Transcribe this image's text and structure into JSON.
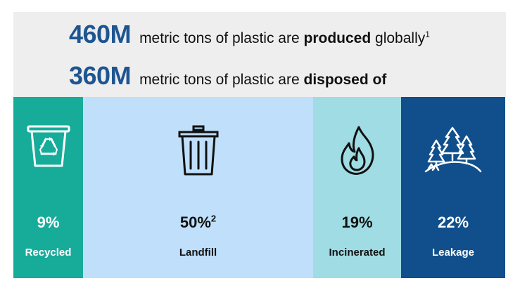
{
  "header": {
    "line1": {
      "number": "460M",
      "prefix": "metric tons of plastic are",
      "bold": "produced",
      "suffix": "globally",
      "footnote": "1"
    },
    "line2": {
      "number": "360M",
      "prefix": "metric tons of plastic are",
      "bold": "disposed of"
    }
  },
  "panels": [
    {
      "percent": "9%",
      "footnote": "",
      "label": "Recycled",
      "icon": "recycle-bin-icon",
      "color": "#17ac9a"
    },
    {
      "percent": "50%",
      "footnote": "2",
      "label": "Landfill",
      "icon": "trash-can-icon",
      "color": "#bfdffb"
    },
    {
      "percent": "19%",
      "footnote": "",
      "label": "Incinerated",
      "icon": "flame-icon",
      "color": "#9fdce4"
    },
    {
      "percent": "22%",
      "footnote": "",
      "label": "Leakage",
      "icon": "forest-icon",
      "color": "#104f8b"
    }
  ]
}
